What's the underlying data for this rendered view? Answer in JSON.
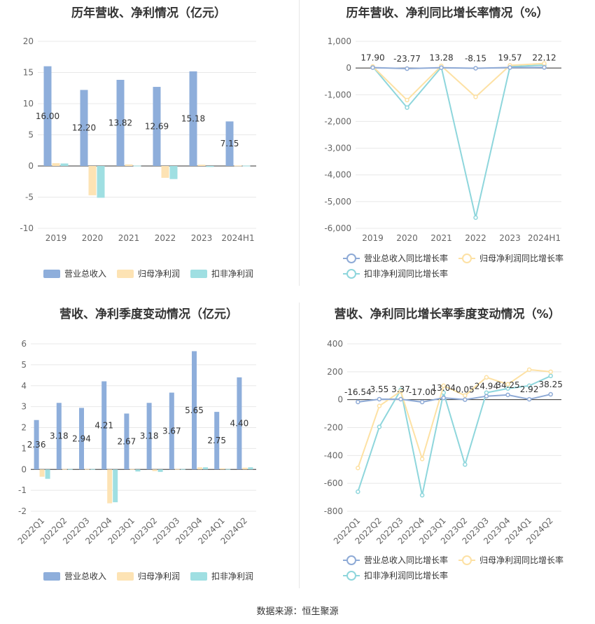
{
  "source_label": "数据来源：恒生聚源",
  "colors": {
    "revenue": "#8eaedb",
    "parent_profit": "#fde3b4",
    "deducted_profit": "#9fdfe2",
    "revenue_line": "#8eaad6",
    "parent_line": "#fde1a4",
    "deducted_line": "#8ed6dc"
  },
  "chart_data": [
    {
      "type": "bar",
      "title": "历年营收、净利情况（亿元）",
      "categories": [
        "2019",
        "2020",
        "2021",
        "2022",
        "2023",
        "2024H1"
      ],
      "series": [
        {
          "name": "营业总收入",
          "values": [
            16.0,
            12.2,
            13.82,
            12.69,
            15.18,
            7.15
          ]
        },
        {
          "name": "归母净利润",
          "values": [
            0.45,
            -4.7,
            0.25,
            -1.9,
            0.2,
            0.08
          ]
        },
        {
          "name": "扣非净利润",
          "values": [
            0.4,
            -5.1,
            0.05,
            -2.1,
            -0.15,
            0.05
          ]
        }
      ],
      "data_labels": [
        "16.00",
        "12.20",
        "13.82",
        "12.69",
        "15.18",
        "7.15"
      ],
      "ylim": [
        -10,
        20
      ],
      "yticks": [
        "20",
        "15",
        "10",
        "5",
        "0",
        "-5",
        "-10"
      ],
      "legend": "bottom"
    },
    {
      "type": "line",
      "title": "历年营收、净利同比增长率情况（%）",
      "categories": [
        "2019",
        "2020",
        "2021",
        "2022",
        "2023",
        "2024H1"
      ],
      "series": [
        {
          "name": "营业总收入同比增长率",
          "values": [
            17.9,
            -23.77,
            13.28,
            -8.15,
            19.57,
            22.12
          ]
        },
        {
          "name": "归母净利润同比增长率",
          "values": [
            60,
            -1200,
            80,
            -1080,
            100,
            170
          ]
        },
        {
          "name": "扣非净利润同比增长率",
          "values": [
            50,
            -1480,
            30,
            -5600,
            50,
            110
          ]
        }
      ],
      "data_labels": [
        "17.90",
        "-23.77",
        "13.28",
        "-8.15",
        "19.57",
        "22.12"
      ],
      "ylim": [
        -6000,
        1000
      ],
      "yticks": [
        "1,000",
        "0",
        "-1,000",
        "-2,000",
        "-3,000",
        "-4,000",
        "-5,000",
        "-6,000"
      ],
      "legend": "bottom"
    },
    {
      "type": "bar",
      "title": "营收、净利季度变动情况（亿元）",
      "categories": [
        "2022Q1",
        "2022Q2",
        "2022Q3",
        "2022Q4",
        "2023Q1",
        "2023Q2",
        "2023Q3",
        "2023Q4",
        "2024Q1",
        "2024Q2"
      ],
      "series": [
        {
          "name": "营业总收入",
          "values": [
            2.36,
            3.18,
            2.94,
            4.21,
            2.67,
            3.18,
            3.67,
            5.65,
            2.75,
            4.4
          ]
        },
        {
          "name": "归母净利润",
          "values": [
            -0.35,
            0.02,
            0.02,
            -1.62,
            0.02,
            -0.08,
            0.02,
            0.1,
            0.05,
            0.08
          ]
        },
        {
          "name": "扣非净利润",
          "values": [
            -0.45,
            0.02,
            0.02,
            -1.57,
            -0.1,
            -0.12,
            0.02,
            0.1,
            0.02,
            0.1
          ]
        }
      ],
      "data_labels": [
        "2.36",
        "3.18",
        "2.94",
        "4.21",
        "2.67",
        "3.18",
        "3.67",
        "5.65",
        "2.75",
        "4.40"
      ],
      "ylim": [
        -2,
        6
      ],
      "yticks": [
        "6",
        "5",
        "4",
        "3",
        "2",
        "1",
        "0",
        "-1",
        "-2"
      ],
      "legend": "bottom"
    },
    {
      "type": "line",
      "title": "营收、净利同比增长率季度变动情况（%）",
      "categories": [
        "2022Q1",
        "2022Q2",
        "2022Q3",
        "2022Q4",
        "2023Q1",
        "2023Q2",
        "2023Q3",
        "2023Q4",
        "2024Q1",
        "2024Q2"
      ],
      "series": [
        {
          "name": "营业总收入同比增长率",
          "values": [
            -16.54,
            3.55,
            3.37,
            -17.0,
            13.04,
            0.05,
            24.94,
            34.25,
            2.92,
            38.25
          ]
        },
        {
          "name": "归母净利润同比增长率",
          "values": [
            -490,
            -45,
            60,
            -425,
            100,
            30,
            160,
            110,
            215,
            200
          ]
        },
        {
          "name": "扣非净利润同比增长率",
          "values": [
            -660,
            -195,
            70,
            -685,
            50,
            -465,
            50,
            80,
            100,
            170
          ]
        }
      ],
      "data_labels": [
        "-16.54",
        "3.55",
        "3.37",
        "-17.00",
        "13.04",
        "0.05",
        "24.94",
        "34.25",
        "2.92",
        "38.25"
      ],
      "ylim": [
        -800,
        400
      ],
      "yticks": [
        "400",
        "200",
        "0",
        "-200",
        "-400",
        "-600",
        "-800"
      ],
      "legend": "bottom"
    }
  ]
}
